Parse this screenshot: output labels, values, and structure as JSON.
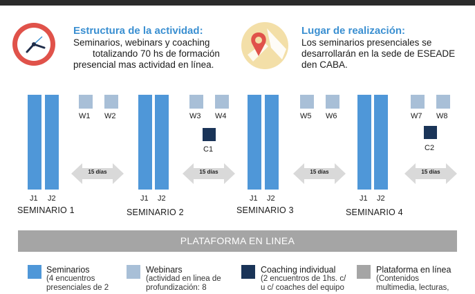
{
  "colors": {
    "seminar": "#4f97d8",
    "webinar": "#a8bfd7",
    "coaching": "#1a3458",
    "platform": "#a5a5a5",
    "heading": "#3a8fd1",
    "clock": "#e0524a",
    "map": "#f3dfa8"
  },
  "info": {
    "structure": {
      "icon": "clock-icon",
      "title": "Estructura de la actividad:",
      "lines": [
        "Seminarios, webinars y coaching",
        "totalizando 70 hs de formación",
        "presencial mas actividad en línea."
      ]
    },
    "location": {
      "icon": "map-pin-icon",
      "title": "Lugar de realización:",
      "lines": [
        "Los seminarios presenciales se",
        "desarrollarán en la sede de ESEADE",
        "den CABA."
      ]
    }
  },
  "timeline": {
    "day_labels": [
      "J1",
      "J2"
    ],
    "seminars": [
      "SEMINARIO 1",
      "SEMINARIO 2",
      "SEMINARIO 3",
      "SEMINARIO 4"
    ],
    "webinars": [
      "W1",
      "W2",
      "W3",
      "W4",
      "W5",
      "W6",
      "W7",
      "W8"
    ],
    "coaching": [
      "C1",
      "C2"
    ],
    "interval_label": "15 días"
  },
  "platform_bar": "PLATAFORMA EN LINEA",
  "legend": [
    {
      "title": "Seminarios",
      "lines": [
        "(4 encuentros",
        "presenciales de 2"
      ]
    },
    {
      "title": "Webinars",
      "lines": [
        "(actividad en linea de",
        "profundización: 8"
      ]
    },
    {
      "title": "Coaching individual",
      "lines": [
        "(2 encuentros de 1hs. c/",
        "u c/ coaches del equipo"
      ]
    },
    {
      "title": "Plataforma en línea",
      "lines": [
        "(Contenidos",
        "multimedia, lecturas,"
      ]
    }
  ]
}
